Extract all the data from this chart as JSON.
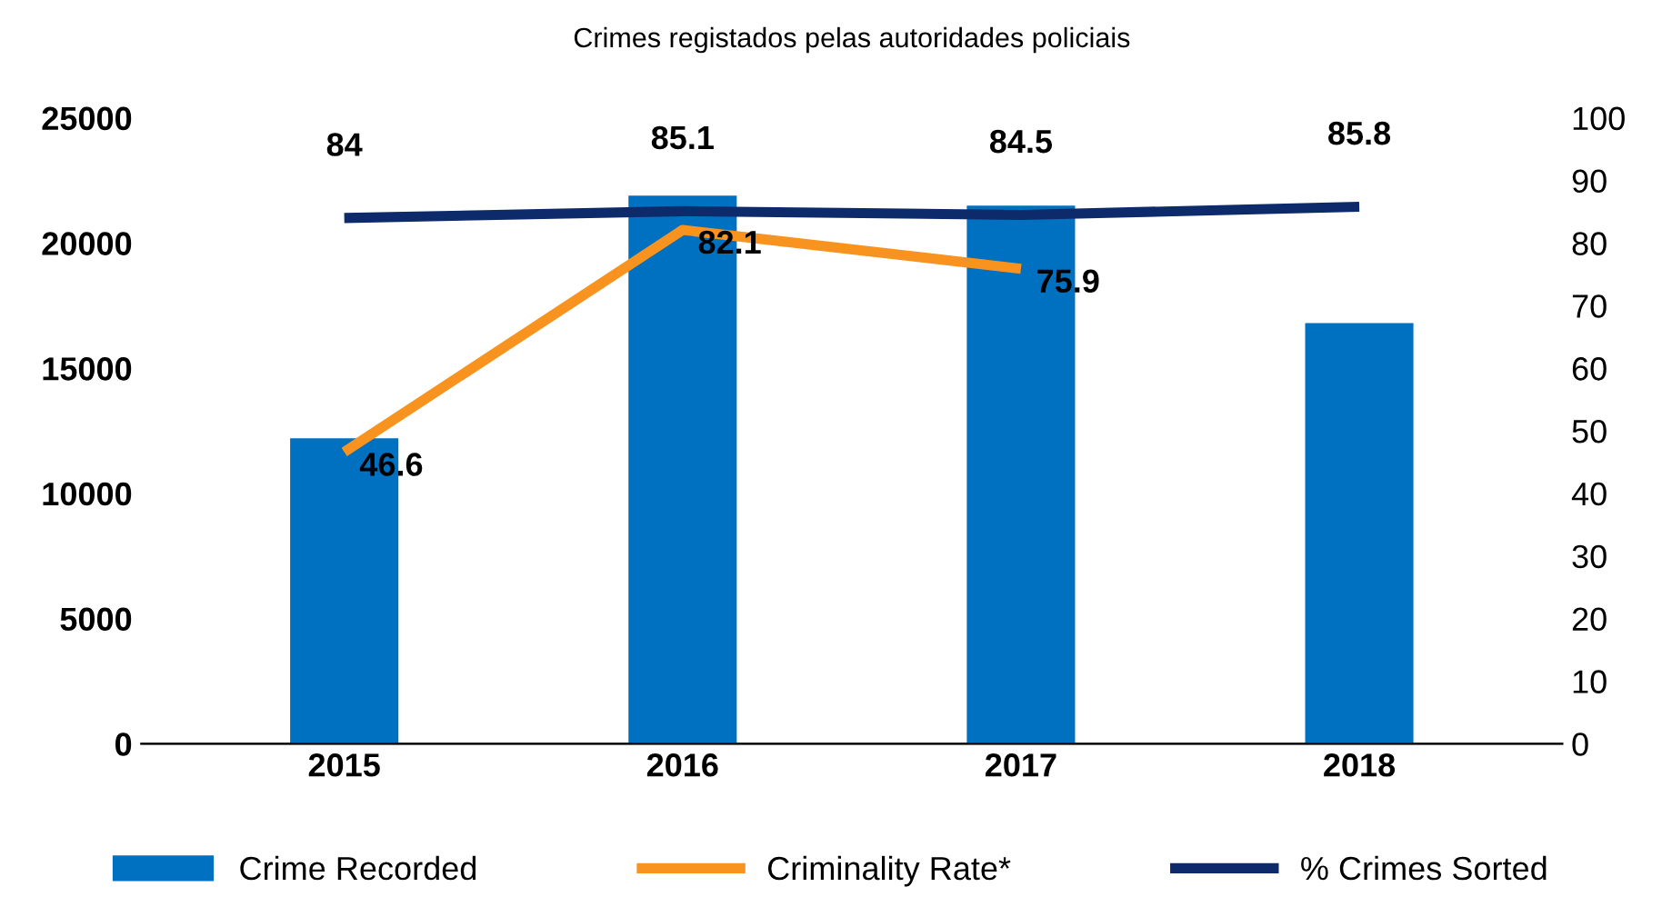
{
  "chart_data": {
    "type": "bar",
    "title": "Crimes registados pelas autoridades policiais",
    "categories": [
      "2015",
      "2016",
      "2017",
      "2018"
    ],
    "series": [
      {
        "name": "Crime Recorded",
        "color": "#0070c0",
        "values": [
          12200,
          21900,
          21500,
          16800
        ]
      },
      {
        "name": "Criminality Rate*",
        "type": "line",
        "axis": "y2",
        "color": "#f7931e",
        "values": [
          46.6,
          82.1,
          75.9,
          null
        ],
        "value_labels": [
          "46.6",
          "82.1",
          "75.9",
          null
        ]
      },
      {
        "name": "% Crimes Sorted",
        "type": "line",
        "axis": "y2",
        "color": "#0d2b6b",
        "values": [
          84,
          85.1,
          84.5,
          85.8
        ],
        "value_labels": [
          "84",
          "85.1",
          "84.5",
          "85.8"
        ]
      }
    ],
    "ylim": [
      0,
      25000
    ],
    "yticks": [
      0,
      5000,
      10000,
      15000,
      20000,
      25000
    ],
    "y2lim": [
      0,
      100
    ],
    "y2ticks": [
      0,
      10,
      20,
      30,
      40,
      50,
      60,
      70,
      80,
      90,
      100
    ],
    "grid": false,
    "legend": "bottom",
    "marker": "none"
  }
}
